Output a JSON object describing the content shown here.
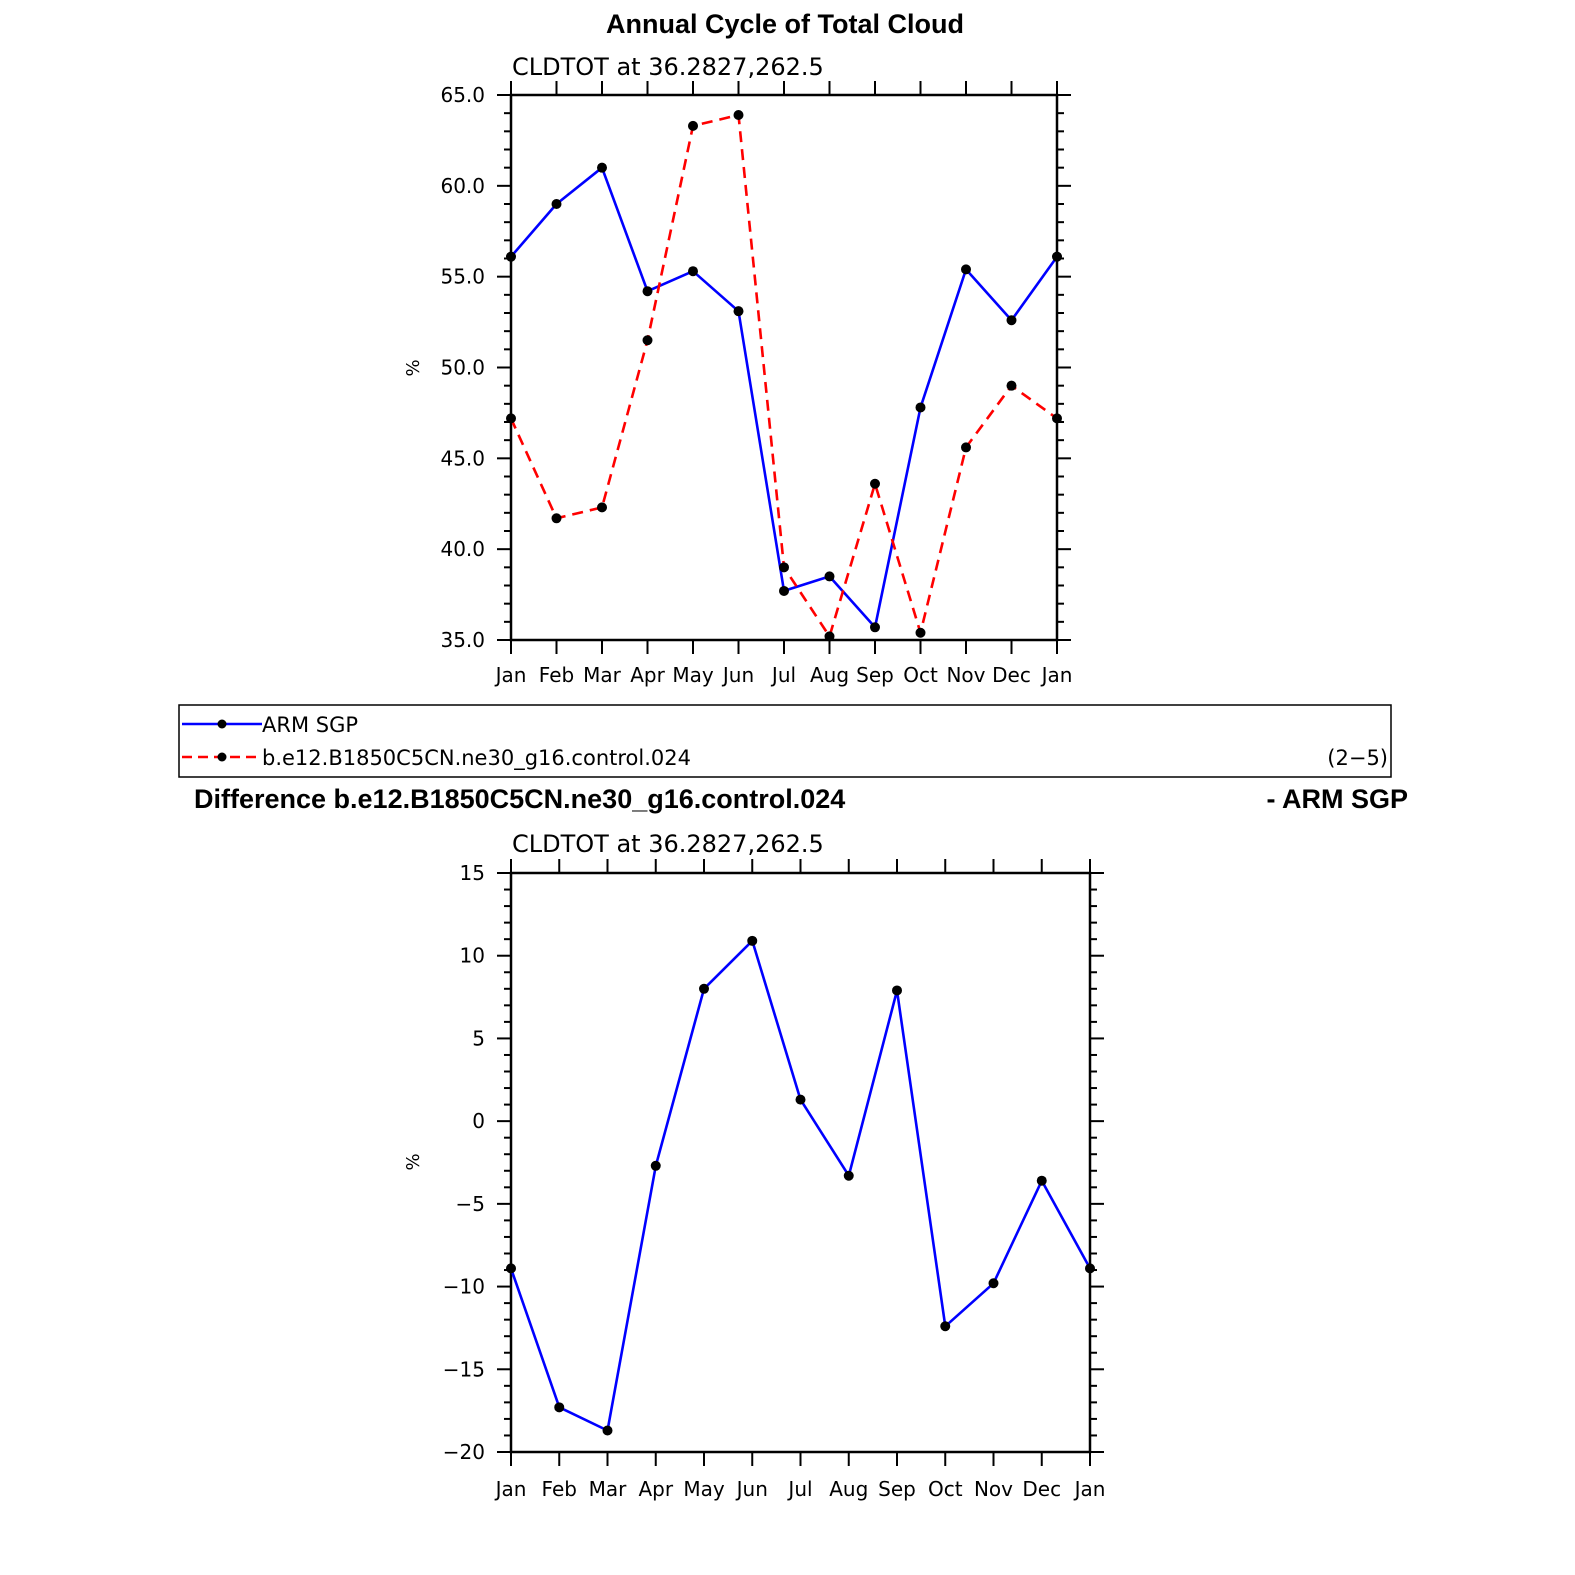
{
  "chart_data": [
    {
      "type": "line",
      "title": "Annual Cycle of Total Cloud",
      "subtitle": "CLDTOT at 36.2827,262.5",
      "ylabel": "%",
      "ylim": [
        35,
        65
      ],
      "yticks": [
        "35.0",
        "40.0",
        "45.0",
        "50.0",
        "55.0",
        "60.0",
        "65.0"
      ],
      "categories": [
        "Jan",
        "Feb",
        "Mar",
        "Apr",
        "May",
        "Jun",
        "Jul",
        "Aug",
        "Sep",
        "Oct",
        "Nov",
        "Dec",
        "Jan"
      ],
      "series": [
        {
          "name": "ARM SGP",
          "color": "#0000ff",
          "dash": "solid",
          "values": [
            56.1,
            59.0,
            61.0,
            54.2,
            55.3,
            53.1,
            37.7,
            38.5,
            35.7,
            47.8,
            55.4,
            52.6,
            56.1
          ]
        },
        {
          "name": "b.e12.B1850C5CN.ne30_g16.control.024",
          "color": "#ff0000",
          "dash": "dashed",
          "values": [
            47.2,
            41.7,
            42.3,
            51.5,
            63.3,
            63.9,
            39.0,
            35.2,
            43.6,
            35.4,
            45.6,
            49.0,
            47.2
          ]
        }
      ],
      "grid": false
    },
    {
      "type": "line",
      "title": "Difference b.e12.B1850C5CN.ne30_g16.control.024",
      "title_right": "- ARM SGP",
      "subtitle": "CLDTOT at 36.2827,262.5",
      "ylabel": "%",
      "ylim": [
        -20,
        15
      ],
      "yticks": [
        "−20",
        "−15",
        "−10",
        "−5",
        "0",
        "5",
        "10",
        "15"
      ],
      "categories": [
        "Jan",
        "Feb",
        "Mar",
        "Apr",
        "May",
        "Jun",
        "Jul",
        "Aug",
        "Sep",
        "Oct",
        "Nov",
        "Dec",
        "Jan"
      ],
      "series": [
        {
          "color": "#0000ff",
          "dash": "solid",
          "values": [
            -8.9,
            -17.3,
            -18.7,
            -2.7,
            8.0,
            10.9,
            1.3,
            -3.3,
            7.9,
            -12.4,
            -9.8,
            -3.6,
            -8.9
          ]
        }
      ],
      "grid": false
    }
  ],
  "legend": {
    "position": "between-panels",
    "items": [
      {
        "label": "ARM SGP",
        "color": "#0000ff",
        "dash": "solid"
      },
      {
        "label": "b.e12.B1850C5CN.ne30_g16.control.024",
        "color": "#ff0000",
        "dash": "dashed"
      }
    ],
    "panel_tag": "(2−5)"
  }
}
